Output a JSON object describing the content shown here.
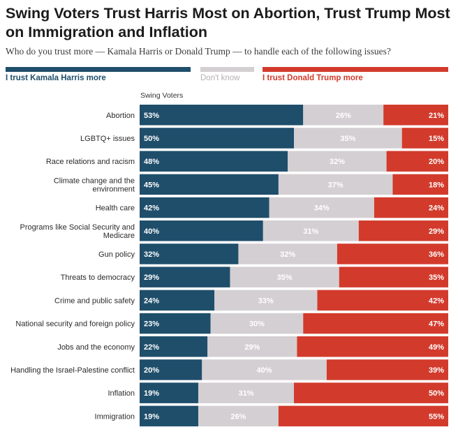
{
  "title": "Swing Voters Trust Harris Most on Abortion, Trust Trump Most on Immigration and Inflation",
  "subtitle": "Who do you trust more — Kamala Harris or Donald Trump — to handle each of the following issues?",
  "legend": {
    "harris": "I trust Kamala Harris more",
    "dont_know": "Don't know",
    "trump": "I trust Donald Trump more"
  },
  "colors": {
    "harris": "#1f4e6b",
    "dont_know": "#d4cfd2",
    "trump": "#d23b2c",
    "harris_text": "#1f4e6b",
    "dont_know_text": "#b6b0b4",
    "trump_text": "#d23b2c"
  },
  "chart_data": {
    "type": "bar",
    "orientation": "horizontal",
    "stacked": true,
    "group_label": "Swing Voters",
    "unit": "%",
    "categories": [
      "Abortion",
      "LGBTQ+ issues",
      "Race relations and racism",
      "Climate change and the environment",
      "Health care",
      "Programs like Social Security and Medicare",
      "Gun policy",
      "Threats to democracy",
      "Crime and public safety",
      "National security and foreign policy",
      "Jobs and the economy",
      "Handling the Israel-Palestine conflict",
      "Inflation",
      "Immigration"
    ],
    "category_lines": [
      [
        "Abortion"
      ],
      [
        "LGBTQ+ issues"
      ],
      [
        "Race relations and racism"
      ],
      [
        "Climate change and the",
        "environment"
      ],
      [
        "Health care"
      ],
      [
        "Programs like Social Security and",
        "Medicare"
      ],
      [
        "Gun policy"
      ],
      [
        "Threats to democracy"
      ],
      [
        "Crime and public safety"
      ],
      [
        "National security and foreign policy"
      ],
      [
        "Jobs and the economy"
      ],
      [
        "Handling the Israel-Palestine conflict"
      ],
      [
        "Inflation"
      ],
      [
        "Immigration"
      ]
    ],
    "series": [
      {
        "name": "I trust Kamala Harris more",
        "key": "harris",
        "values": [
          53,
          50,
          48,
          45,
          42,
          40,
          32,
          29,
          24,
          23,
          22,
          20,
          19,
          19
        ]
      },
      {
        "name": "Don't know",
        "key": "dont_know",
        "values": [
          26,
          35,
          32,
          37,
          34,
          31,
          32,
          35,
          33,
          30,
          29,
          40,
          31,
          26
        ]
      },
      {
        "name": "I trust Donald Trump more",
        "key": "trump",
        "values": [
          21,
          15,
          20,
          18,
          24,
          29,
          36,
          35,
          42,
          47,
          49,
          39,
          50,
          55
        ]
      }
    ],
    "xlim": [
      0,
      100
    ]
  }
}
